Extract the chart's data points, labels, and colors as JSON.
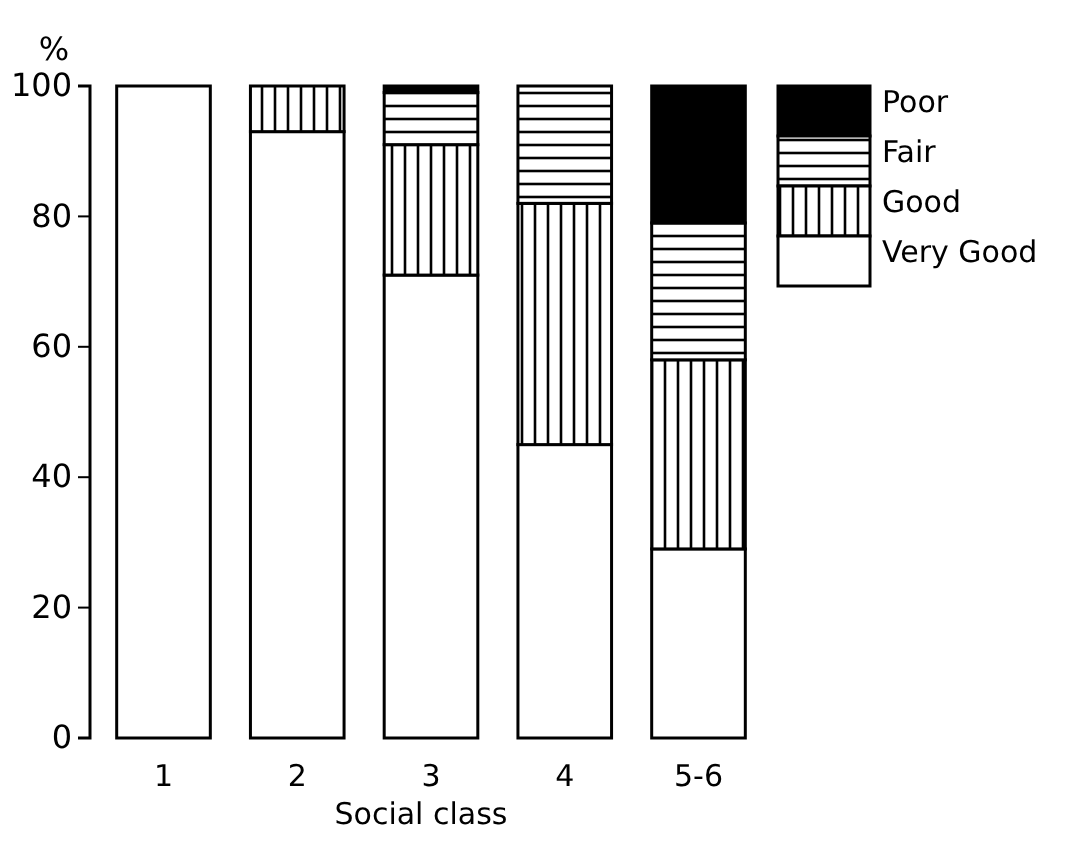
{
  "chart_data": {
    "type": "bar",
    "stacked": true,
    "xlabel": "Social class",
    "ylabel": "%",
    "categories": [
      "1",
      "2",
      "3",
      "4",
      "5-6"
    ],
    "series": [
      {
        "name": "Very Good",
        "color": "#ffffff",
        "values": [
          100,
          93,
          71,
          45,
          29
        ]
      },
      {
        "name": "Good",
        "color": "#000000",
        "values": [
          0,
          7,
          20,
          37,
          29
        ]
      },
      {
        "name": "Fair",
        "color": "#000000",
        "values": [
          0,
          0,
          8,
          18,
          21
        ]
      },
      {
        "name": "Poor",
        "color": "#000000",
        "values": [
          0,
          0,
          1,
          0,
          21
        ]
      }
    ],
    "ylim": [
      0,
      100
    ],
    "yticks": [
      0,
      20,
      40,
      60,
      80,
      100
    ],
    "grid": false,
    "legend": "top right"
  }
}
